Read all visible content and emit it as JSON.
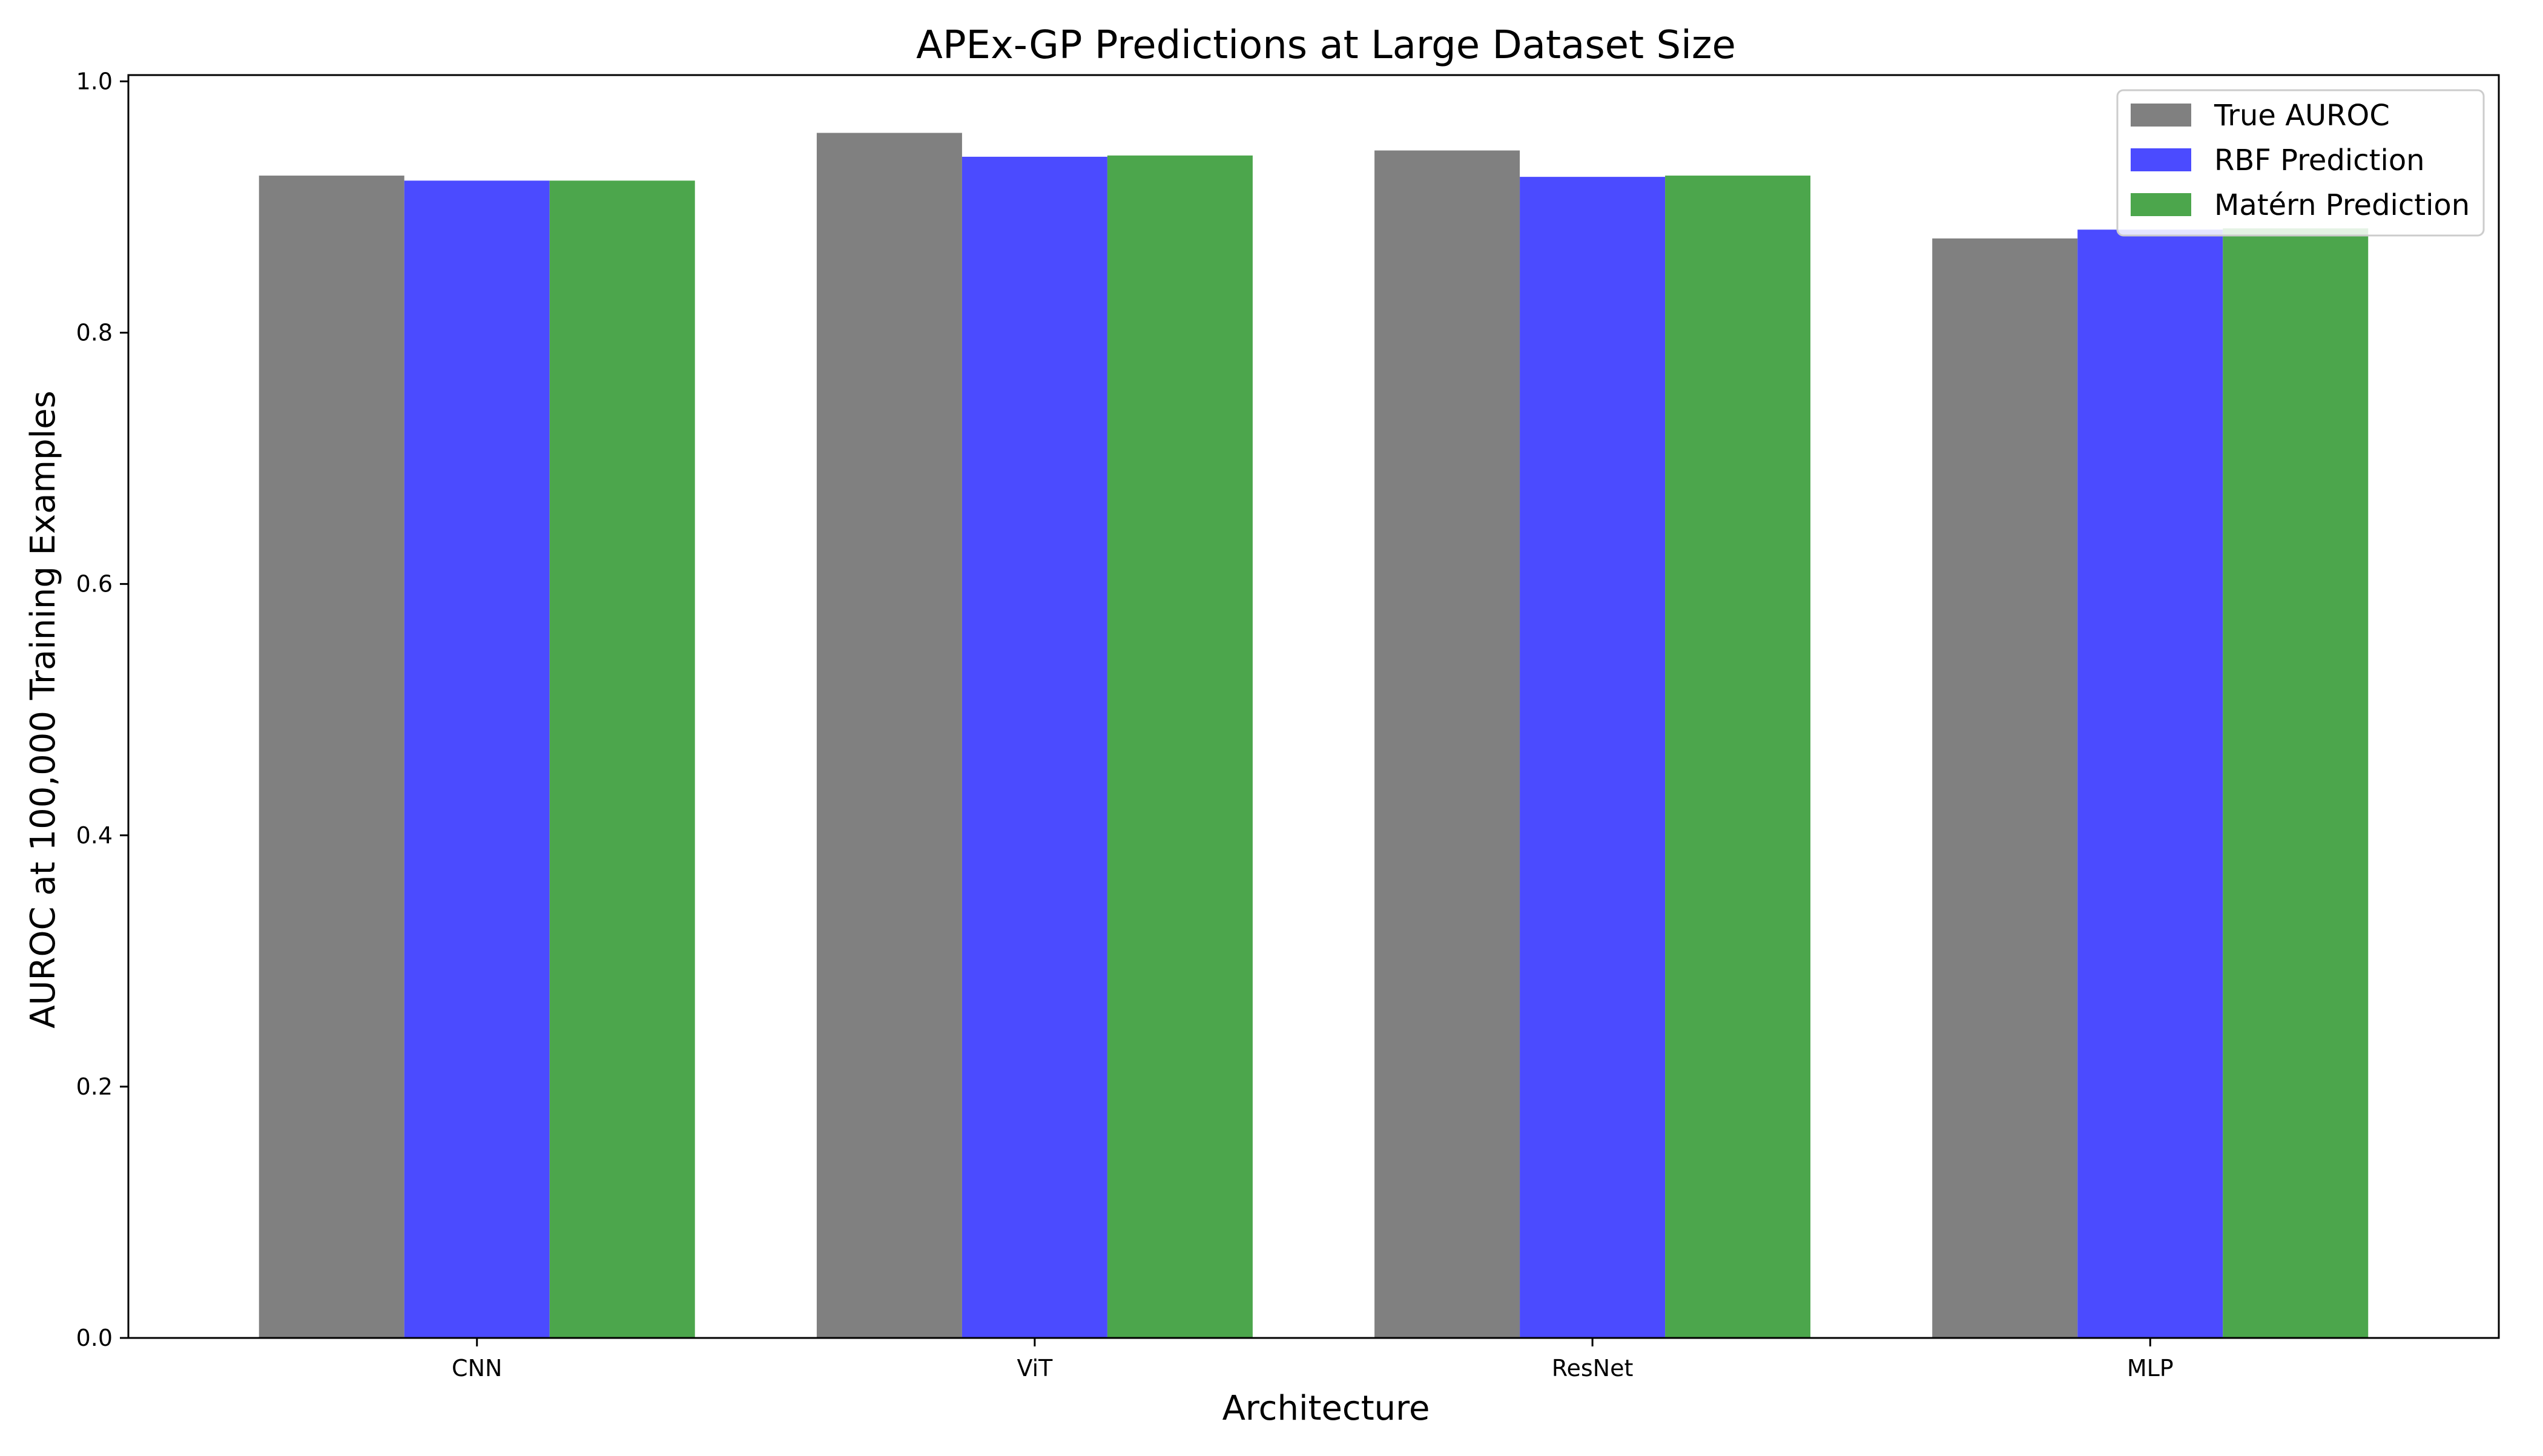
{
  "chart_data": {
    "type": "bar",
    "title": "APEx-GP Predictions at Large Dataset Size",
    "xlabel": "Architecture",
    "ylabel": "AUROC at 100,000 Training Examples",
    "categories": [
      "CNN",
      "ViT",
      "ResNet",
      "MLP"
    ],
    "series": [
      {
        "name": "True AUROC",
        "color": "#808080",
        "values": [
          0.925,
          0.959,
          0.945,
          0.875
        ]
      },
      {
        "name": "RBF Prediction",
        "color": "#4b4bff",
        "values": [
          0.921,
          0.94,
          0.924,
          0.882
        ]
      },
      {
        "name": "Matérn Prediction",
        "color": "#4ca64c",
        "values": [
          0.921,
          0.941,
          0.925,
          0.883
        ]
      }
    ],
    "ylim": [
      0,
      1.005
    ],
    "yticks": [
      "0.0",
      "0.2",
      "0.4",
      "0.6",
      "0.8",
      "1.0"
    ],
    "grid": false,
    "legend": "top-right"
  }
}
